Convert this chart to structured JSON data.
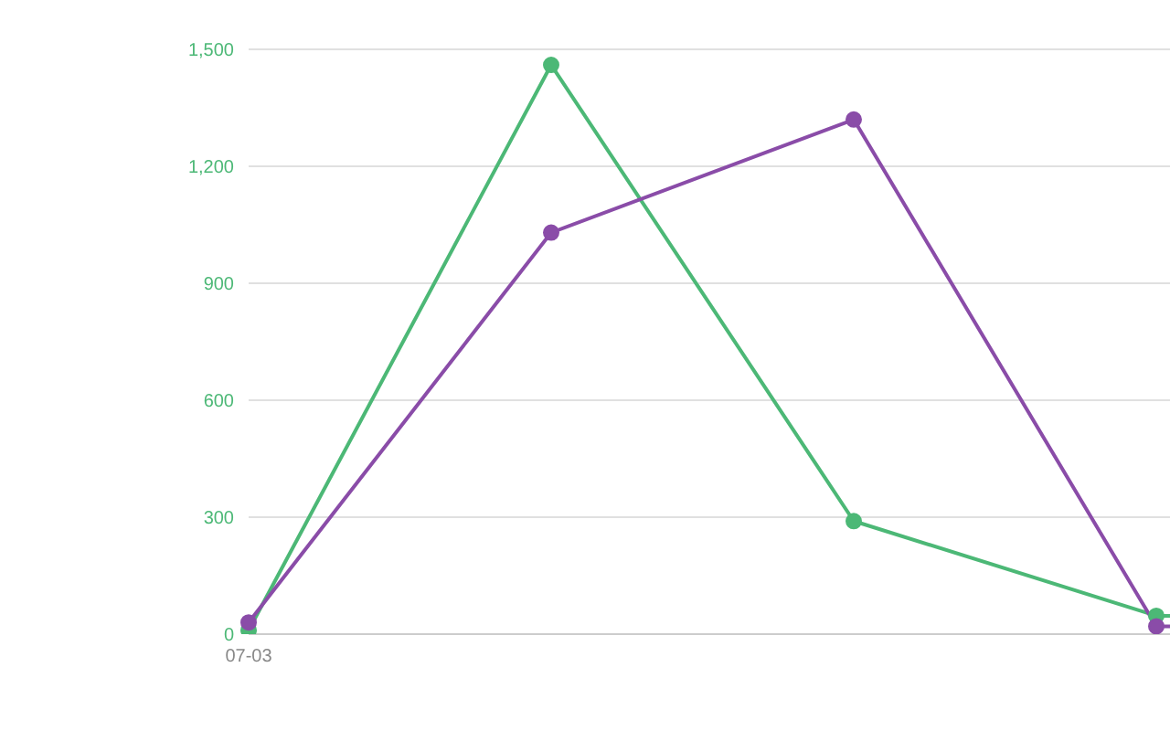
{
  "chart_data": {
    "type": "line",
    "categories": [
      "07-03",
      null,
      null,
      null,
      null
    ],
    "series": [
      {
        "color": "#4cb876",
        "values": [
          10,
          1460,
          290,
          47,
          38
        ]
      },
      {
        "color": "#8a4ca8",
        "values": [
          30,
          1030,
          1320,
          20,
          20
        ]
      }
    ],
    "ylim": [
      0,
      1500
    ],
    "yticks": [
      0,
      300,
      600,
      900,
      {
        "value": 1200,
        "label": "1,200"
      },
      {
        "value": 1500,
        "label": "1,500"
      }
    ],
    "grid": "y",
    "marker": "circle",
    "line_style": "solid",
    "legend": false
  }
}
